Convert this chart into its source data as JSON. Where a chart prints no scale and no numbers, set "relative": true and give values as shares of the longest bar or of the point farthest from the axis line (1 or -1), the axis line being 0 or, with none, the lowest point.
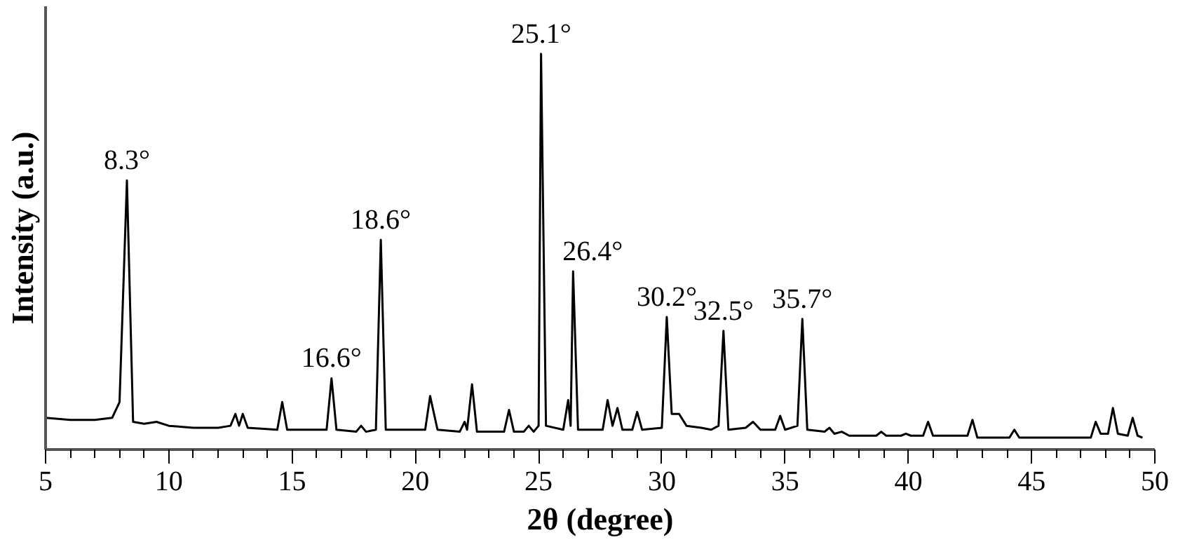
{
  "chart_data": {
    "type": "line",
    "relative": true,
    "xlabel": "2θ (degree)",
    "ylabel": "Intensity (a.u.)",
    "xlim": [
      5,
      50
    ],
    "xticks": [
      5,
      {
        "value": 6,
        "label": null
      },
      {
        "value": 7,
        "label": null
      },
      {
        "value": 8,
        "label": null
      },
      {
        "value": 9,
        "label": null
      },
      10,
      {
        "value": 11,
        "label": null
      },
      {
        "value": 12,
        "label": null
      },
      {
        "value": 13,
        "label": null
      },
      {
        "value": 14,
        "label": null
      },
      15,
      {
        "value": 16,
        "label": null
      },
      {
        "value": 17,
        "label": null
      },
      {
        "value": 18,
        "label": null
      },
      {
        "value": 19,
        "label": null
      },
      20,
      {
        "value": 21,
        "label": null
      },
      {
        "value": 22,
        "label": null
      },
      {
        "value": 23,
        "label": null
      },
      {
        "value": 24,
        "label": null
      },
      25,
      {
        "value": 26,
        "label": null
      },
      {
        "value": 27,
        "label": null
      },
      {
        "value": 28,
        "label": null
      },
      {
        "value": 29,
        "label": null
      },
      30,
      {
        "value": 31,
        "label": null
      },
      {
        "value": 32,
        "label": null
      },
      {
        "value": 33,
        "label": null
      },
      {
        "value": 34,
        "label": null
      },
      35,
      {
        "value": 36,
        "label": null
      },
      {
        "value": 37,
        "label": null
      },
      {
        "value": 38,
        "label": null
      },
      {
        "value": 39,
        "label": null
      },
      40,
      {
        "value": 41,
        "label": null
      },
      {
        "value": 42,
        "label": null
      },
      {
        "value": 43,
        "label": null
      },
      {
        "value": 44,
        "label": null
      },
      45,
      {
        "value": 46,
        "label": null
      },
      {
        "value": 47,
        "label": null
      },
      {
        "value": 48,
        "label": null
      },
      {
        "value": 49,
        "label": null
      },
      50
    ],
    "grid": false,
    "marker": "none",
    "line_style": "solid",
    "series": [
      {
        "color": "#000000",
        "x": [
          5,
          6,
          7,
          7.7,
          8.0,
          8.3,
          8.55,
          9.0,
          9.5,
          10,
          11,
          12,
          12.5,
          12.7,
          12.85,
          13.0,
          13.2,
          14.4,
          14.6,
          14.8,
          16.4,
          16.6,
          16.8,
          17.6,
          17.8,
          18.0,
          18.4,
          18.6,
          18.8,
          20.4,
          20.6,
          20.9,
          21.8,
          22.0,
          22.1,
          22.3,
          22.5,
          23.6,
          23.8,
          24.0,
          24.4,
          24.6,
          24.8,
          25.0,
          25.1,
          25.3,
          26.0,
          26.2,
          26.3,
          26.4,
          26.6,
          27.6,
          27.8,
          28.0,
          28.2,
          28.4,
          28.8,
          29.0,
          29.2,
          30.0,
          30.2,
          30.4,
          30.7,
          31.0,
          31.6,
          32.0,
          32.3,
          32.5,
          32.7,
          33.4,
          33.7,
          34.0,
          34.6,
          34.8,
          35.0,
          35.5,
          35.7,
          35.9,
          36.6,
          36.8,
          37.0,
          37.3,
          37.6,
          38.7,
          38.9,
          39.1,
          39.7,
          39.9,
          40.1,
          40.6,
          40.8,
          41.0,
          42.4,
          42.6,
          42.8,
          44.1,
          44.3,
          44.5,
          46,
          47.4,
          47.6,
          47.8,
          48.1,
          48.3,
          48.5,
          48.9,
          49.1,
          49.3,
          49.5
        ],
        "values": [
          0.08,
          0.075,
          0.075,
          0.08,
          0.12,
          0.68,
          0.07,
          0.065,
          0.07,
          0.06,
          0.055,
          0.055,
          0.06,
          0.09,
          0.06,
          0.09,
          0.055,
          0.05,
          0.12,
          0.05,
          0.05,
          0.18,
          0.05,
          0.045,
          0.06,
          0.045,
          0.05,
          0.53,
          0.05,
          0.05,
          0.135,
          0.05,
          0.045,
          0.07,
          0.05,
          0.165,
          0.045,
          0.045,
          0.1,
          0.045,
          0.045,
          0.06,
          0.045,
          0.06,
          1.0,
          0.06,
          0.05,
          0.125,
          0.06,
          0.45,
          0.05,
          0.05,
          0.125,
          0.06,
          0.105,
          0.05,
          0.05,
          0.095,
          0.05,
          0.055,
          0.335,
          0.09,
          0.09,
          0.06,
          0.055,
          0.05,
          0.06,
          0.3,
          0.05,
          0.055,
          0.07,
          0.05,
          0.05,
          0.085,
          0.05,
          0.06,
          0.33,
          0.05,
          0.045,
          0.055,
          0.04,
          0.045,
          0.035,
          0.035,
          0.045,
          0.035,
          0.035,
          0.04,
          0.035,
          0.035,
          0.07,
          0.035,
          0.035,
          0.075,
          0.03,
          0.03,
          0.05,
          0.03,
          0.03,
          0.03,
          0.07,
          0.04,
          0.04,
          0.105,
          0.04,
          0.035,
          0.08,
          0.035,
          0.03
        ]
      }
    ],
    "annotations": [
      {
        "text": "8.3°",
        "x": 8.3,
        "y": 0.68
      },
      {
        "text": "16.6°",
        "x": 16.6,
        "y": 0.18
      },
      {
        "text": "18.6°",
        "x": 18.6,
        "y": 0.53
      },
      {
        "text": "25.1°",
        "x": 25.1,
        "y": 1.0
      },
      {
        "text": "26.4°",
        "x": 26.4,
        "y": 0.45
      },
      {
        "text": "30.2°",
        "x": 30.2,
        "y": 0.335
      },
      {
        "text": "32.5°",
        "x": 32.5,
        "y": 0.3
      },
      {
        "text": "35.7°",
        "x": 35.7,
        "y": 0.33
      }
    ]
  }
}
